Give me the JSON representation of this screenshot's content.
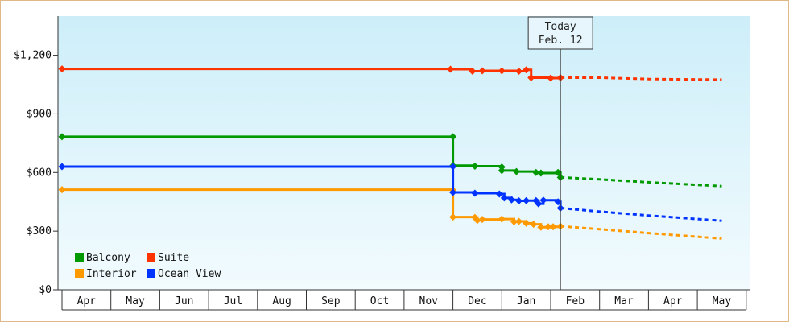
{
  "chart_data": {
    "type": "line",
    "title": "",
    "xlabel": "",
    "ylabel": "",
    "ylim": [
      0,
      1400
    ],
    "y_ticks": [
      {
        "value": 0,
        "label": "$0"
      },
      {
        "value": 300,
        "label": "$300"
      },
      {
        "value": 600,
        "label": "$600"
      },
      {
        "value": 900,
        "label": "$900"
      },
      {
        "value": 1200,
        "label": "$1,200"
      }
    ],
    "months": [
      "Apr",
      "May",
      "Jun",
      "Jul",
      "Aug",
      "Sep",
      "Oct",
      "Nov",
      "Dec",
      "Jan",
      "Feb",
      "Mar",
      "Apr",
      "May"
    ],
    "today": {
      "line1": "Today",
      "line2": "Feb. 12",
      "x": 10.2
    },
    "grid": false,
    "legend_position": "bottom-left",
    "series": [
      {
        "name": "Balcony",
        "color": "#009900",
        "values": [
          [
            0,
            783
          ],
          [
            8.0,
            783
          ],
          [
            8.0,
            635
          ],
          [
            8.45,
            632
          ],
          [
            9.0,
            628
          ],
          [
            9.0,
            610
          ],
          [
            9.3,
            605
          ],
          [
            9.7,
            600
          ],
          [
            9.8,
            597
          ],
          [
            10.15,
            600
          ],
          [
            10.2,
            575
          ]
        ],
        "forecast": [
          [
            10.2,
            575
          ],
          [
            11.0,
            565
          ],
          [
            12.0,
            550
          ],
          [
            13.5,
            530
          ]
        ]
      },
      {
        "name": "Suite",
        "color": "#ff3300",
        "values": [
          [
            0,
            1130
          ],
          [
            7.95,
            1128
          ],
          [
            8.4,
            1118
          ],
          [
            8.6,
            1120
          ],
          [
            9.0,
            1120
          ],
          [
            9.35,
            1118
          ],
          [
            9.5,
            1125
          ],
          [
            9.6,
            1085
          ],
          [
            10.0,
            1083
          ],
          [
            10.2,
            1085
          ]
        ],
        "forecast": [
          [
            10.2,
            1085
          ],
          [
            11.0,
            1085
          ],
          [
            12.0,
            1078
          ],
          [
            13.5,
            1075
          ]
        ]
      },
      {
        "name": "Interior",
        "color": "#ff9900",
        "values": [
          [
            0,
            512
          ],
          [
            8.0,
            510
          ],
          [
            8.0,
            372
          ],
          [
            8.45,
            370
          ],
          [
            8.5,
            355
          ],
          [
            8.6,
            360
          ],
          [
            9.0,
            362
          ],
          [
            9.25,
            348
          ],
          [
            9.35,
            350
          ],
          [
            9.5,
            340
          ],
          [
            9.65,
            335
          ],
          [
            9.8,
            320
          ],
          [
            9.95,
            322
          ],
          [
            10.05,
            322
          ],
          [
            10.2,
            325
          ]
        ],
        "forecast": [
          [
            10.2,
            325
          ],
          [
            11.0,
            310
          ],
          [
            12.0,
            290
          ],
          [
            13.5,
            262
          ]
        ]
      },
      {
        "name": "Ocean View",
        "color": "#0033ff",
        "values": [
          [
            0,
            630
          ],
          [
            8.0,
            630
          ],
          [
            8.0,
            498
          ],
          [
            8.45,
            494
          ],
          [
            8.95,
            490
          ],
          [
            9.05,
            470
          ],
          [
            9.2,
            460
          ],
          [
            9.35,
            455
          ],
          [
            9.5,
            456
          ],
          [
            9.7,
            456
          ],
          [
            9.75,
            440
          ],
          [
            9.85,
            458
          ],
          [
            10.15,
            450
          ],
          [
            10.2,
            418
          ]
        ],
        "forecast": [
          [
            10.2,
            418
          ],
          [
            11.0,
            400
          ],
          [
            12.0,
            380
          ],
          [
            13.5,
            353
          ]
        ]
      }
    ]
  },
  "legend": {
    "items": [
      {
        "label": "Balcony",
        "color": "#009900"
      },
      {
        "label": "Suite",
        "color": "#ff3300"
      },
      {
        "label": "Interior",
        "color": "#ff9900"
      },
      {
        "label": "Ocean View",
        "color": "#0033ff"
      }
    ]
  }
}
